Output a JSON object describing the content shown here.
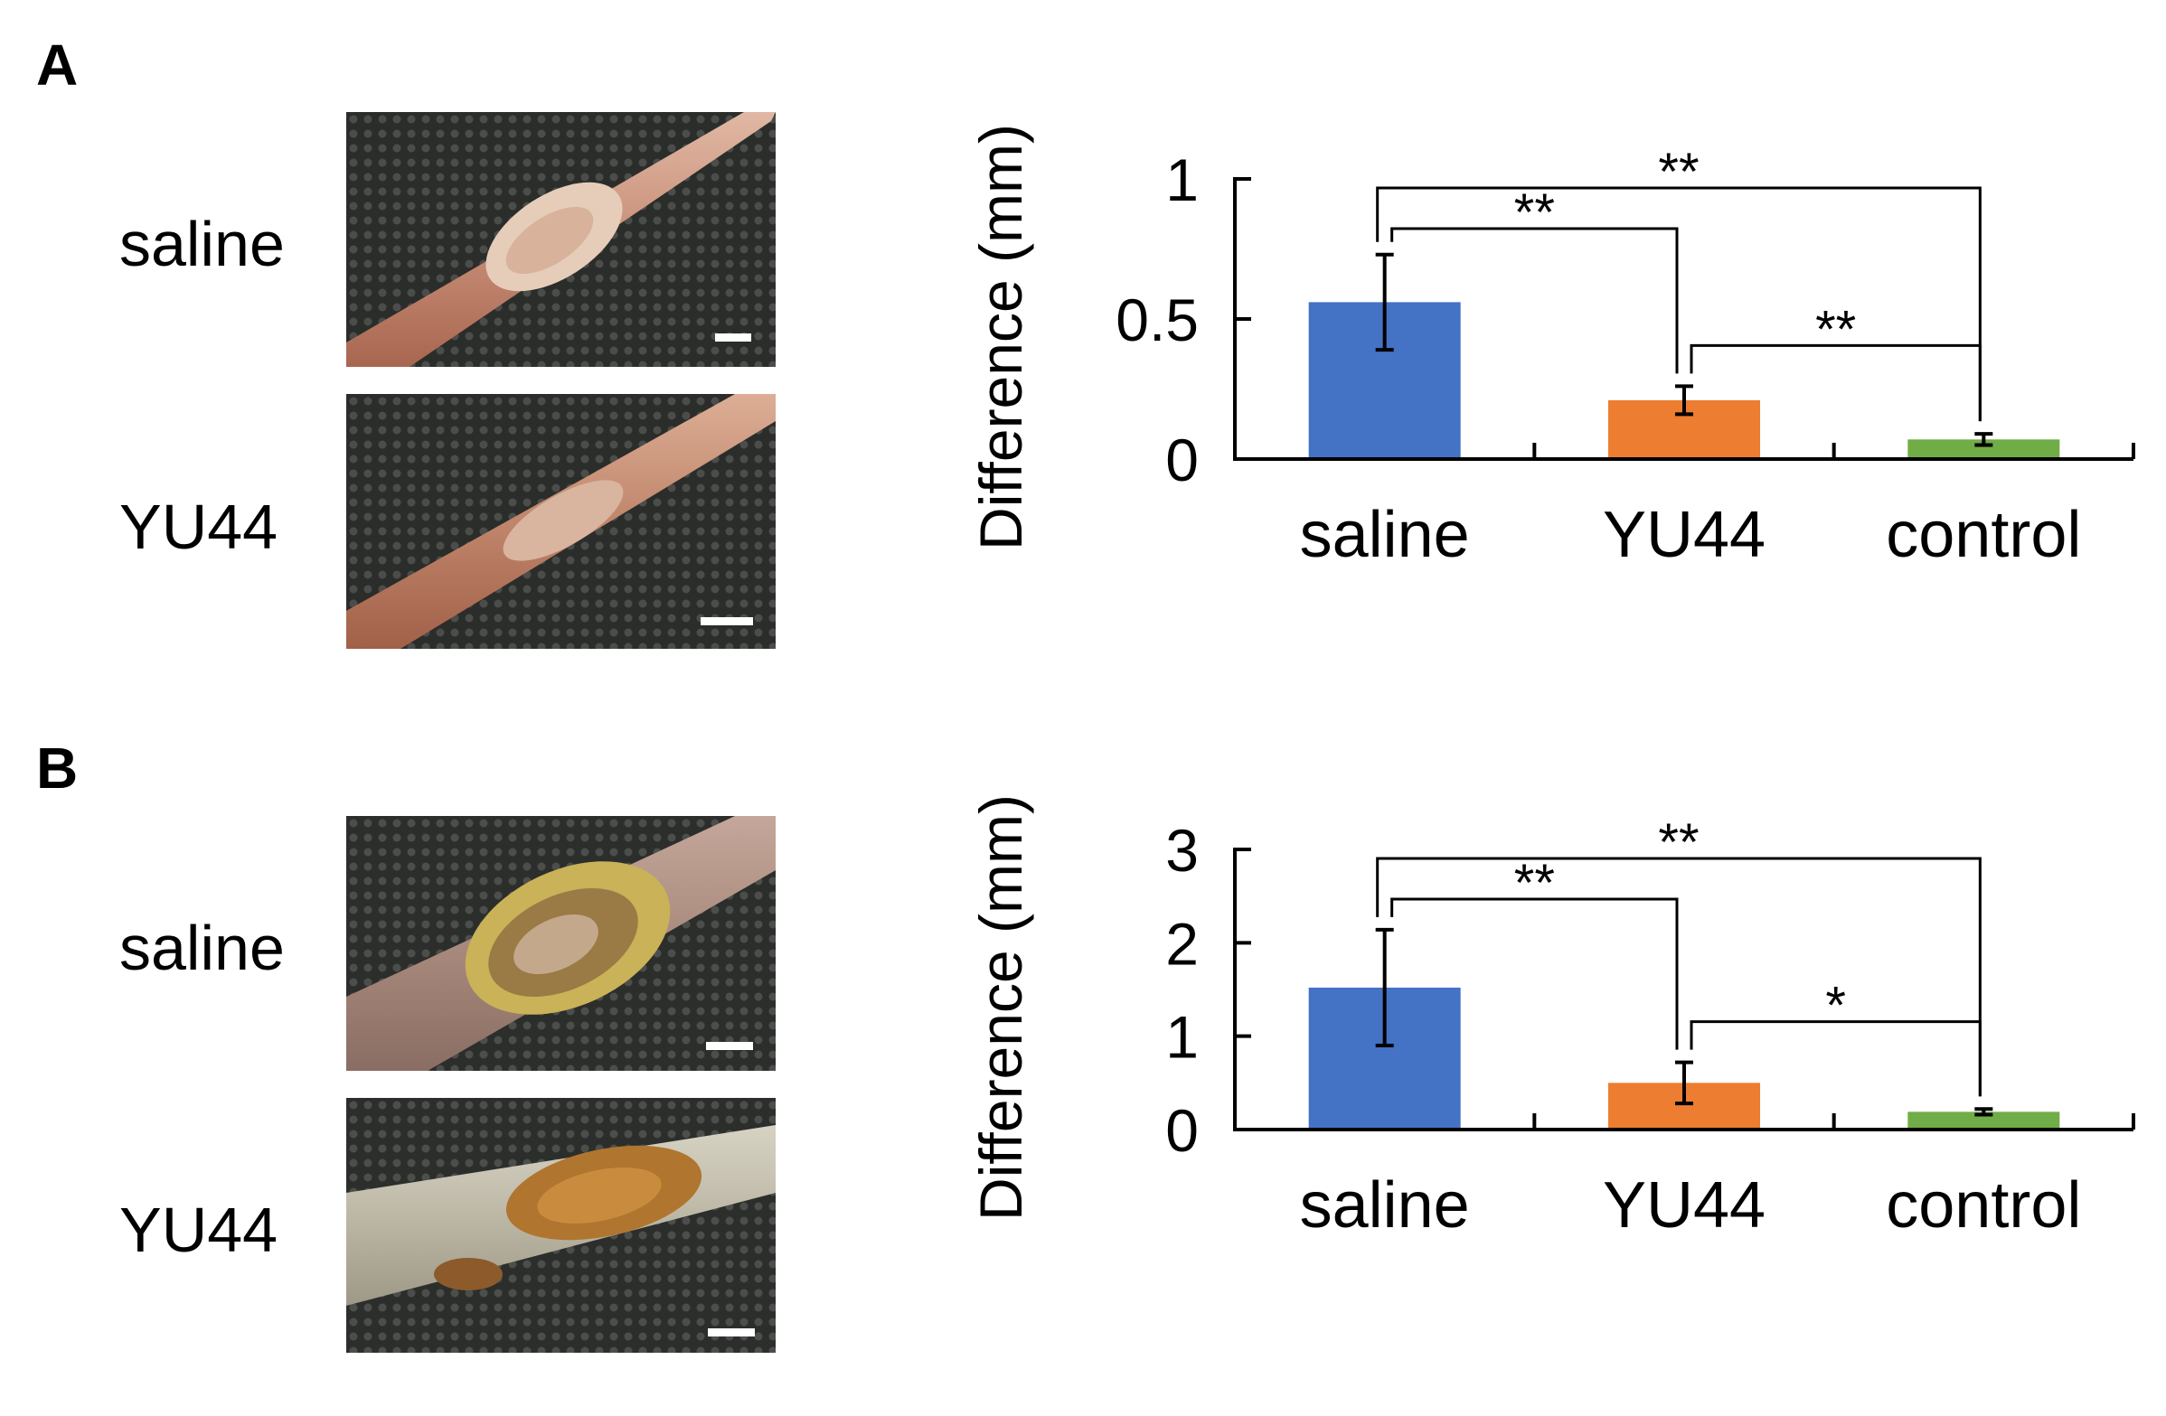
{
  "panels": [
    {
      "letter": "A",
      "photos": [
        {
          "label": "saline"
        },
        {
          "label": "YU44"
        }
      ]
    },
    {
      "letter": "B",
      "photos": [
        {
          "label": "saline"
        },
        {
          "label": "YU44"
        }
      ]
    }
  ],
  "colors": {
    "saline": "#4472C4",
    "YU44": "#ED7D31",
    "control": "#70AD47"
  },
  "chart_data": [
    {
      "type": "bar",
      "panel": "A",
      "categories": [
        "saline",
        "YU44",
        "control"
      ],
      "values": [
        0.56,
        0.21,
        0.07
      ],
      "errors": [
        0.17,
        0.05,
        0.02
      ],
      "ylabel": "Difference (mm)",
      "ylim": [
        0,
        1
      ],
      "yticks": [
        0,
        0.5,
        1
      ],
      "ytick_labels": [
        "0",
        "0.5",
        "1"
      ],
      "grid": false,
      "significance": [
        {
          "from": "saline",
          "to": "control",
          "label": "**"
        },
        {
          "from": "saline",
          "to": "YU44",
          "label": "**"
        },
        {
          "from": "YU44",
          "to": "control",
          "label": "**"
        }
      ]
    },
    {
      "type": "bar",
      "panel": "B",
      "categories": [
        "saline",
        "YU44",
        "control"
      ],
      "values": [
        1.52,
        0.5,
        0.19
      ],
      "errors": [
        0.62,
        0.22,
        0.03
      ],
      "ylabel": "Difference (mm)",
      "ylim": [
        0,
        3
      ],
      "yticks": [
        0,
        1,
        2,
        3
      ],
      "ytick_labels": [
        "0",
        "1",
        "2",
        "3"
      ],
      "grid": false,
      "significance": [
        {
          "from": "saline",
          "to": "control",
          "label": "**"
        },
        {
          "from": "saline",
          "to": "YU44",
          "label": "**"
        },
        {
          "from": "YU44",
          "to": "control",
          "label": "*"
        }
      ]
    }
  ]
}
